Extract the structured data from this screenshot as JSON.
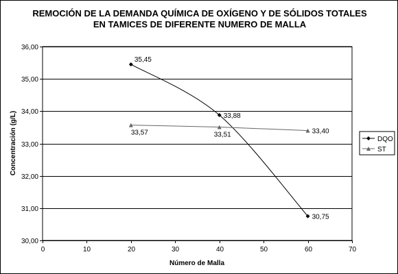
{
  "chart_data": {
    "type": "line",
    "title": [
      "REMOCIÓN DE LA DEMANDA QUÍMICA DE OXÍGENO Y DE SÓLIDOS TOTALES",
      "EN TAMICES DE DIFERENTE NUMERO DE MALLA"
    ],
    "xlabel": "Número de Malla",
    "ylabel": "Concentración (g/L)",
    "xlim": [
      0,
      70
    ],
    "ylim": [
      30,
      36
    ],
    "x_ticks": [
      0,
      10,
      20,
      30,
      40,
      50,
      60,
      70
    ],
    "x_tick_labels": [
      "0",
      "10",
      "20",
      "30",
      "40",
      "50",
      "60",
      "70"
    ],
    "y_ticks": [
      30,
      31,
      32,
      33,
      34,
      35,
      36
    ],
    "y_tick_labels": [
      "30,00",
      "31,00",
      "32,00",
      "33,00",
      "34,00",
      "35,00",
      "36,00"
    ],
    "grid": "horizontal",
    "legend_position": "right",
    "series": [
      {
        "name": "DQO",
        "marker": "diamond",
        "color": "#000000",
        "smooth": true,
        "x": [
          20,
          40,
          60
        ],
        "y": [
          35.45,
          33.88,
          30.75
        ],
        "labels": [
          "35,45",
          "33,88",
          "30,75"
        ]
      },
      {
        "name": "ST",
        "marker": "triangle",
        "color": "#666666",
        "smooth": false,
        "x": [
          20,
          40,
          60
        ],
        "y": [
          33.57,
          33.51,
          33.4
        ],
        "labels": [
          "33,57",
          "33,51",
          "33,40"
        ]
      }
    ]
  }
}
